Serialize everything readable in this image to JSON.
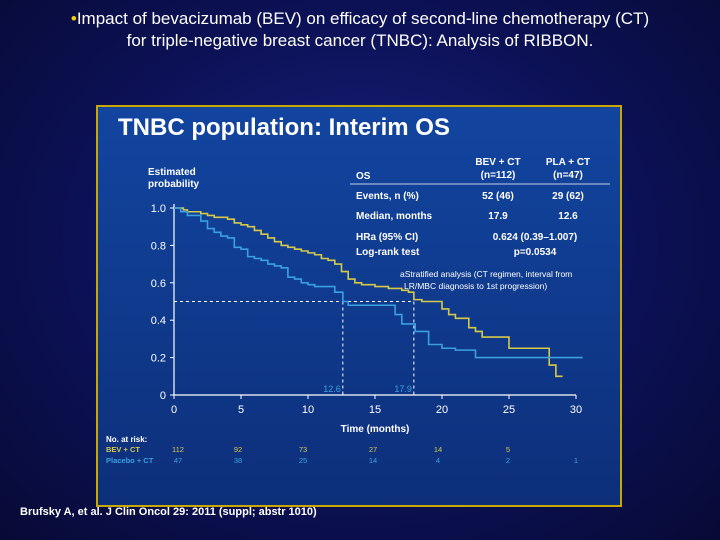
{
  "header": {
    "bullet": "•",
    "line1": "Impact of bevacizumab (BEV) on efficacy of second-line chemotherapy (CT)",
    "line2": "for triple-negative breast cancer (TNBC): Analysis of RIBBON."
  },
  "citation": "Brufsky A, et al. J Clin Oncol 29: 2011 (suppl; abstr 1010)",
  "colors": {
    "bev": "#d6c94a",
    "placebo": "#3aa0e0",
    "title": "#ffffff",
    "accent_gold": "#c8a800"
  },
  "stats_table": {
    "header": [
      "OS",
      "BEV + CT\n(n=112)",
      "PLA + CT\n(n=47)"
    ],
    "rows": [
      [
        "Events, n (%)",
        "52 (46)",
        "29 (62)"
      ],
      [
        "Median, months",
        "17.9",
        "12.6"
      ],
      [
        "HRa (95% CI)",
        "0.624 (0.39–1.007)",
        ""
      ],
      [
        "Log-rank test",
        "p=0.0534",
        ""
      ]
    ],
    "footnote_line1": "aStratified analysis (CT regimen, interval from",
    "footnote_line2": "LR/MBC diagnosis to 1st progression)"
  },
  "at_risk": {
    "title": "No. at risk:",
    "rows": [
      {
        "label": "BEV + CT",
        "values": [
          "112",
          "92",
          "73",
          "27",
          "14",
          "5",
          ""
        ]
      },
      {
        "label": "Placebo + CT",
        "values": [
          "47",
          "38",
          "25",
          "14",
          "4",
          "2",
          "1"
        ]
      }
    ]
  },
  "chart_data": {
    "type": "line",
    "title": "TNBC population: Interim OS",
    "xlabel": "Time (months)",
    "ylabel": "Estimated\nprobability",
    "xlim": [
      0,
      30
    ],
    "ylim": [
      0,
      1.0
    ],
    "xticks": [
      0,
      5,
      10,
      15,
      20,
      25,
      30
    ],
    "yticks": [
      0,
      0.2,
      0.4,
      0.6,
      0.8,
      1.0
    ],
    "ytick_labels": [
      "0",
      "0.2",
      "0.4",
      "0.6",
      "0.8",
      "1.0"
    ],
    "median_line": 0.5,
    "annotations": [
      {
        "text": "12.6",
        "x": 12.6
      },
      {
        "text": "17.9",
        "x": 17.9
      }
    ],
    "series": [
      {
        "name": "BEV + CT",
        "x": [
          0,
          0.7,
          1,
          2,
          2.5,
          3,
          4,
          4.5,
          5,
          5.5,
          6,
          6.5,
          7,
          7.5,
          8,
          8.5,
          9,
          9.5,
          10,
          10.5,
          11,
          11.5,
          12,
          12.5,
          13,
          13.5,
          14,
          15,
          16,
          17,
          17.5,
          17.9,
          18.5,
          19,
          20,
          20.5,
          21,
          22,
          22.5,
          23,
          24,
          25,
          27,
          28,
          28.5,
          29
        ],
        "y": [
          1.0,
          0.99,
          0.98,
          0.97,
          0.96,
          0.95,
          0.94,
          0.92,
          0.91,
          0.9,
          0.88,
          0.86,
          0.84,
          0.82,
          0.8,
          0.79,
          0.78,
          0.77,
          0.76,
          0.75,
          0.73,
          0.72,
          0.7,
          0.66,
          0.62,
          0.6,
          0.59,
          0.58,
          0.57,
          0.56,
          0.55,
          0.51,
          0.5,
          0.5,
          0.46,
          0.43,
          0.41,
          0.36,
          0.34,
          0.31,
          0.31,
          0.25,
          0.25,
          0.16,
          0.1,
          0.1
        ]
      },
      {
        "name": "Placebo + CT",
        "x": [
          0,
          0.5,
          1,
          2,
          2.5,
          3,
          3.5,
          4,
          4.5,
          5,
          5.5,
          6,
          6.5,
          7,
          7.5,
          8,
          8.5,
          9,
          9.5,
          10,
          10.5,
          11,
          12,
          12.6,
          13,
          14,
          15,
          16,
          16.5,
          17,
          18,
          19,
          20,
          21,
          22,
          22.5,
          25,
          27,
          28,
          31
        ],
        "y": [
          1.0,
          0.98,
          0.96,
          0.93,
          0.89,
          0.87,
          0.85,
          0.84,
          0.79,
          0.78,
          0.74,
          0.73,
          0.72,
          0.7,
          0.69,
          0.68,
          0.63,
          0.62,
          0.6,
          0.59,
          0.58,
          0.58,
          0.55,
          0.5,
          0.48,
          0.48,
          0.48,
          0.48,
          0.43,
          0.38,
          0.34,
          0.27,
          0.25,
          0.24,
          0.24,
          0.2,
          0.2,
          0.2,
          0.2,
          0.2
        ]
      }
    ]
  }
}
